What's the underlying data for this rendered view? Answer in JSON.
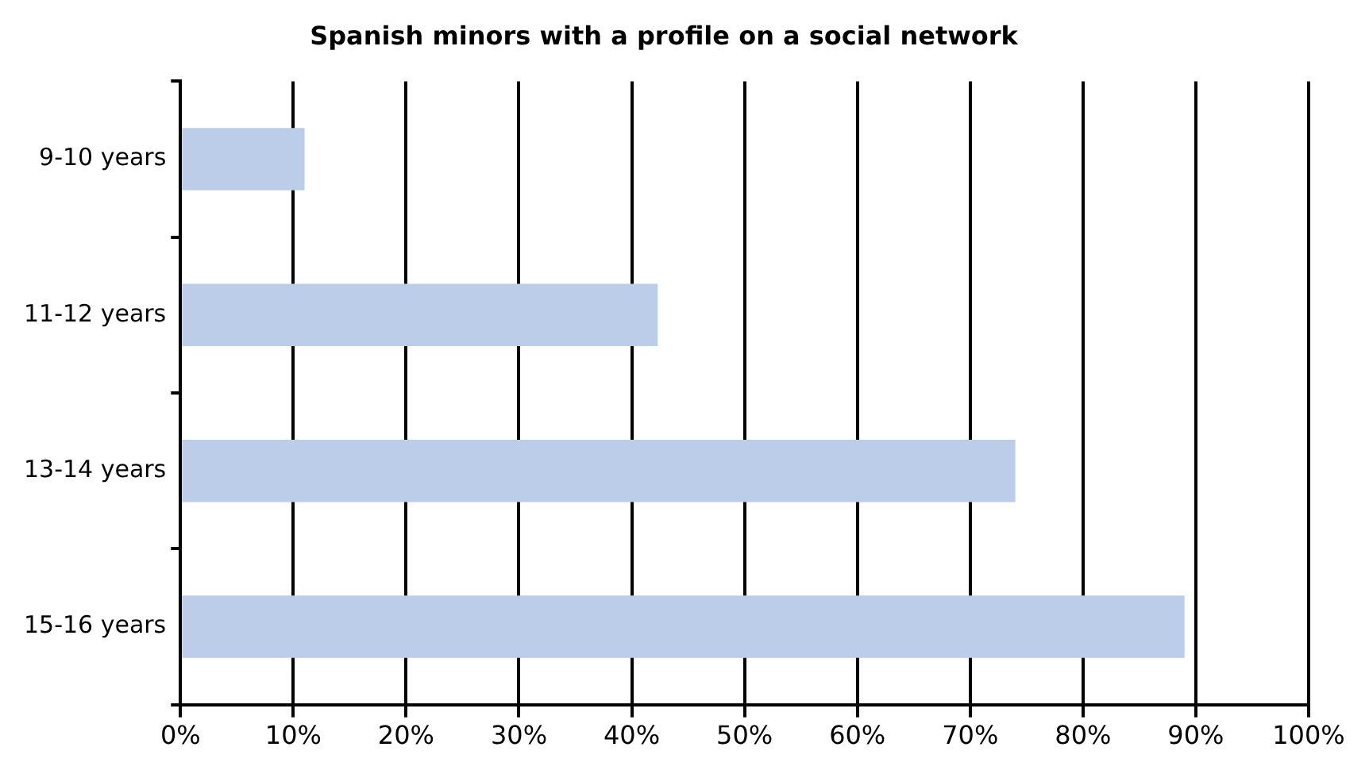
{
  "chart_data": {
    "type": "bar",
    "orientation": "horizontal",
    "title": "Spanish minors with a profile on a social network",
    "categories": [
      "9-10 years",
      "11-12 years",
      "13-14 years",
      "15-16 years"
    ],
    "series": [
      {
        "color": "#bccde9",
        "values": [
          11,
          42.3,
          74,
          89
        ]
      }
    ],
    "xlim": [
      0,
      100
    ],
    "xticks": [
      {
        "value": 0,
        "label": "0%"
      },
      {
        "value": 10,
        "label": "10%"
      },
      {
        "value": 20,
        "label": "20%"
      },
      {
        "value": 30,
        "label": "30%"
      },
      {
        "value": 40,
        "label": "40%"
      },
      {
        "value": 50,
        "label": "50%"
      },
      {
        "value": 60,
        "label": "60%"
      },
      {
        "value": 70,
        "label": "70%"
      },
      {
        "value": 80,
        "label": "80%"
      },
      {
        "value": 90,
        "label": "90%"
      },
      {
        "value": 100,
        "label": "100%"
      }
    ],
    "grid": "x",
    "legend": false
  }
}
